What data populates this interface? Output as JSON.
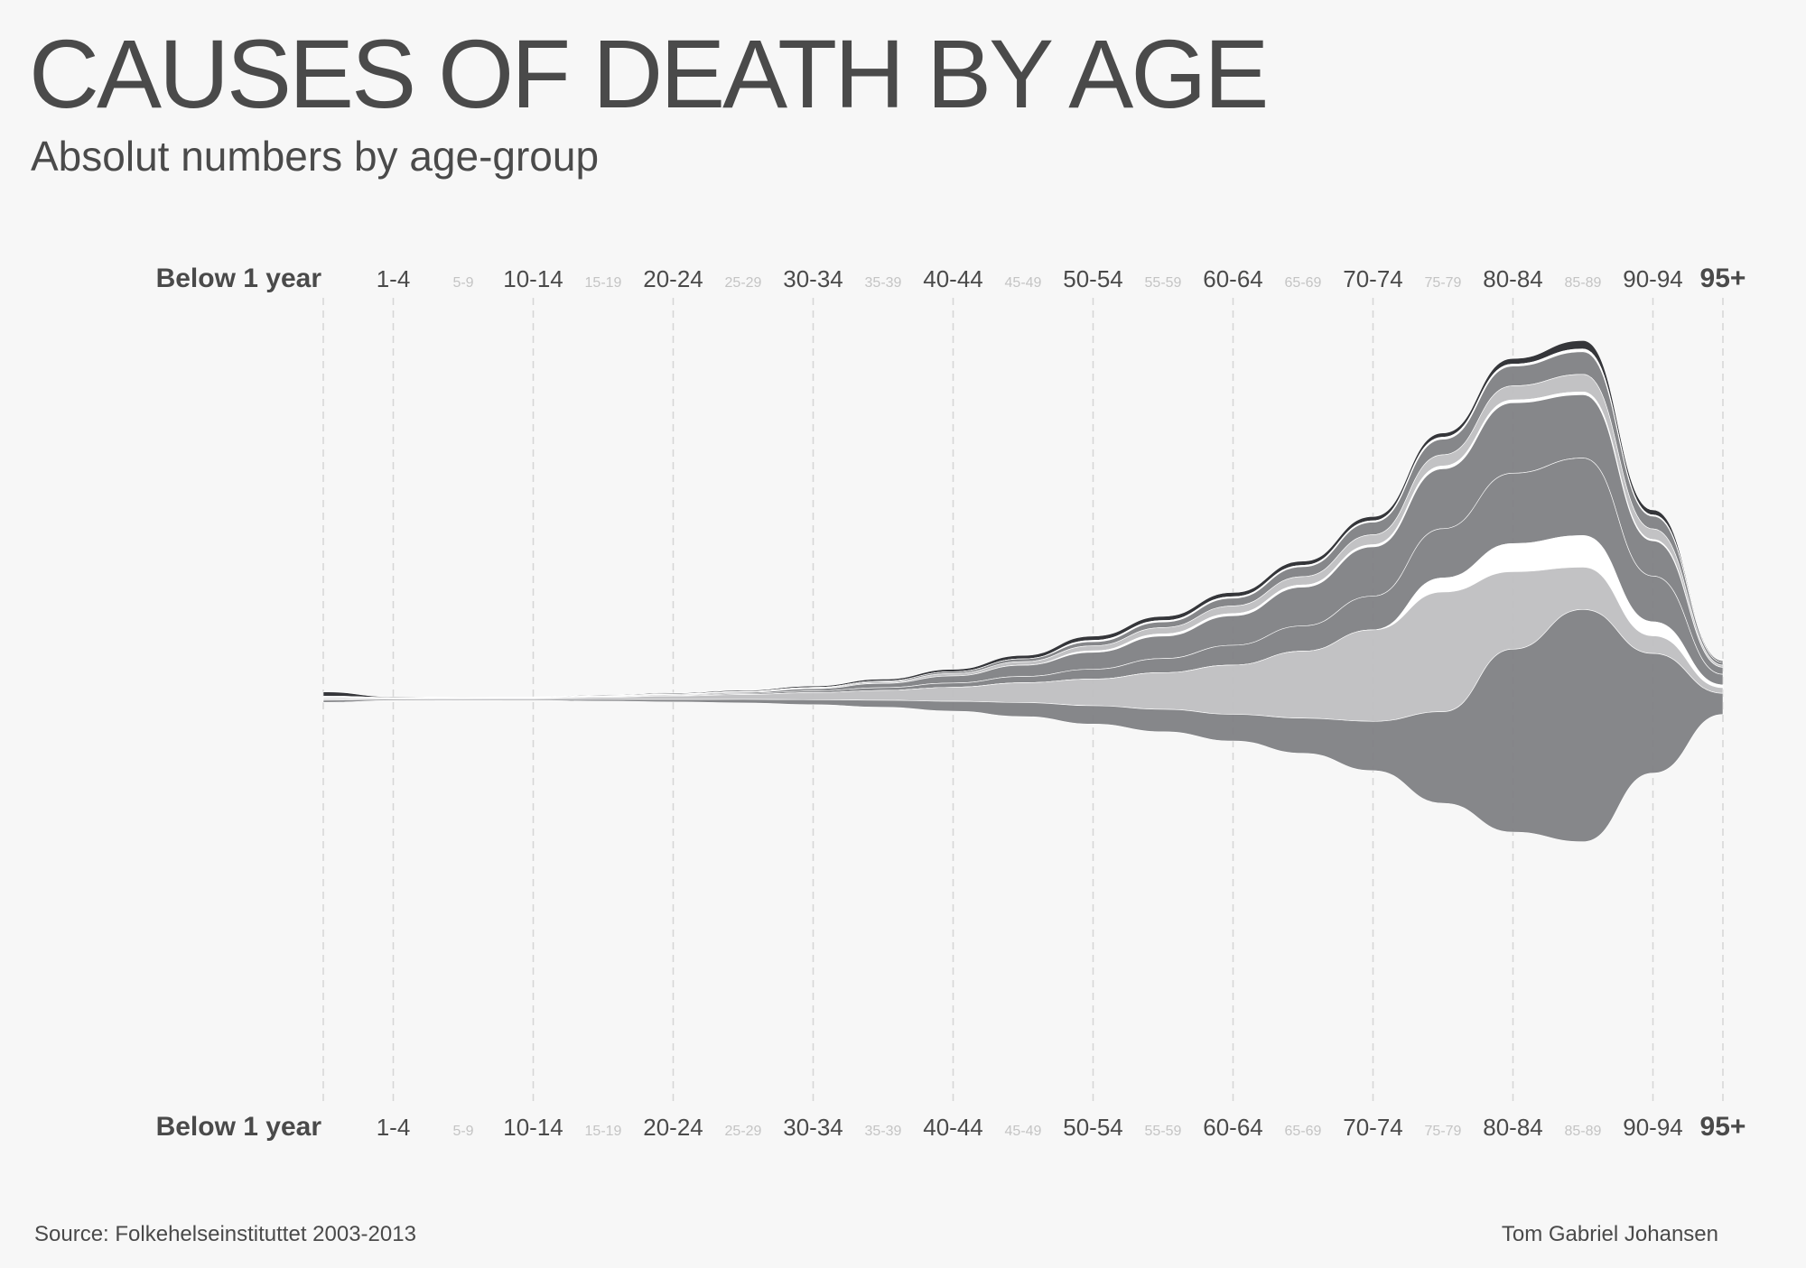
{
  "title": "CAUSES OF DEATH BY AGE",
  "subtitle": "Absolut numbers by age-group",
  "footer": {
    "source": "Source: Folkehelseinstituttet 2003-2013",
    "author": "Tom Gabriel Johansen"
  },
  "colors": {
    "background": "#f7f7f7",
    "text": "#4a4a4a",
    "minor_tick": "#c4c4c4",
    "grid": "#d6d6d6",
    "band_dark": "#2a2b2f",
    "band_mid": "#808184",
    "band_light": "#bfbfc1",
    "band_separator": "#ffffff"
  },
  "chart_data": {
    "type": "streamgraph",
    "categories": [
      "Below 1 year",
      "1-4",
      "5-9",
      "10-14",
      "15-19",
      "20-24",
      "25-29",
      "30-34",
      "35-39",
      "40-44",
      "45-49",
      "50-54",
      "55-59",
      "60-64",
      "65-69",
      "70-74",
      "75-79",
      "80-84",
      "85-89",
      "90-94",
      "95+"
    ],
    "major_categories": [
      "Below 1 year",
      "1-4",
      "10-14",
      "20-24",
      "30-34",
      "40-44",
      "50-54",
      "60-64",
      "70-74",
      "80-84",
      "90-94",
      "95+"
    ],
    "grid": true,
    "series": [
      {
        "color": "#2a2b2f",
        "values": [
          6,
          1,
          0.6,
          0.6,
          1,
          1.4,
          1.6,
          2,
          2.5,
          3.5,
          5,
          6,
          6,
          6,
          6,
          6,
          6,
          8,
          12,
          7,
          2
        ]
      },
      {
        "color": "#ffffff",
        "values": [
          0,
          0,
          0,
          0,
          0,
          0,
          0,
          0,
          0,
          0,
          0,
          2,
          2,
          2,
          2,
          2,
          3,
          3,
          4,
          2,
          0
        ]
      },
      {
        "color": "#808184",
        "values": [
          1,
          0.3,
          0.2,
          0.2,
          0.3,
          0.4,
          0.5,
          0.8,
          1.5,
          2.5,
          4,
          6,
          8,
          11,
          14,
          18,
          22,
          28,
          32,
          18,
          4
        ]
      },
      {
        "color": "#bfbfc1",
        "values": [
          1,
          0.4,
          0.3,
          0.3,
          0.5,
          0.6,
          0.8,
          1.2,
          2,
          3.5,
          5,
          7,
          9,
          11,
          12,
          14,
          16,
          20,
          25,
          15,
          3
        ]
      },
      {
        "color": "#ffffff",
        "values": [
          0,
          0,
          0,
          0,
          0,
          0,
          0,
          0,
          0,
          0,
          0,
          2,
          3,
          3,
          3,
          3,
          4,
          4,
          4,
          2,
          0
        ]
      },
      {
        "color": "#808184",
        "values": [
          1,
          0.5,
          0.5,
          0.5,
          0.8,
          1,
          1.5,
          3,
          6,
          10,
          16,
          24,
          32,
          42,
          55,
          70,
          85,
          100,
          90,
          50,
          10
        ]
      },
      {
        "color": "#808184",
        "values": [
          1,
          0.4,
          0.4,
          0.4,
          0.8,
          1,
          1.5,
          2.5,
          4,
          6,
          9,
          14,
          20,
          28,
          36,
          48,
          70,
          100,
          110,
          65,
          15
        ]
      },
      {
        "color": "#ffffff",
        "values": [
          0,
          0,
          0,
          0,
          0,
          0,
          0,
          0,
          0,
          0,
          0,
          0,
          0,
          0,
          0,
          0,
          20,
          40,
          45,
          20,
          4
        ]
      },
      {
        "color": "#bfbfc1",
        "values": [
          2,
          1.2,
          1.2,
          1.4,
          3,
          5,
          7,
          10,
          14,
          20,
          28,
          38,
          52,
          70,
          95,
          130,
          170,
          110,
          60,
          25,
          8
        ]
      },
      {
        "color": "#808184",
        "values": [
          3,
          1.5,
          1.5,
          1.5,
          2.5,
          3.5,
          5,
          7,
          10,
          14,
          20,
          26,
          32,
          38,
          50,
          70,
          130,
          260,
          330,
          170,
          30
        ]
      }
    ]
  }
}
